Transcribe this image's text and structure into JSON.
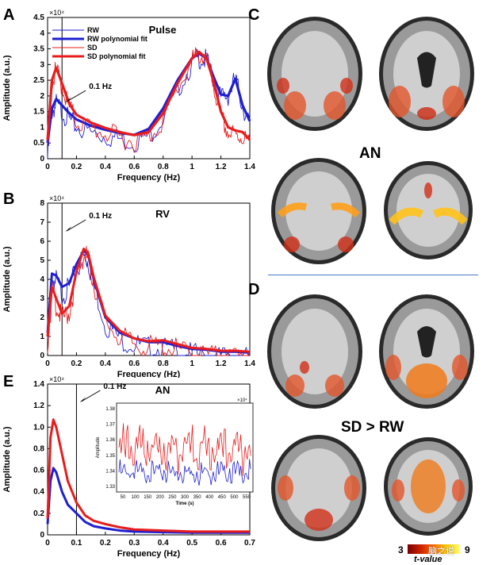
{
  "panels": {
    "A": "A",
    "B": "B",
    "C": "C",
    "D": "D",
    "E": "E"
  },
  "brain_captions": {
    "an": "AN",
    "contrast": "SD > RW"
  },
  "colorbar": {
    "min": "3",
    "max": "9",
    "label": "t-value",
    "colors": [
      "#7a0000",
      "#cc2200",
      "#ff6a00",
      "#ffcc00",
      "#ffff66"
    ]
  },
  "watermark": "脑之说",
  "series_colors": {
    "rw": "#1f1fd0",
    "sd": "#e81c1c"
  },
  "chart_data": [
    {
      "id": "A",
      "type": "line",
      "title": "Pulse",
      "xlabel": "Frequency (Hz)",
      "ylabel": "Amplitude (a.u.)",
      "exponent": "×10⁴",
      "xlim": [
        0,
        1.4
      ],
      "ylim": [
        0,
        4.5
      ],
      "xticks": [
        "0",
        "0.2",
        "0.4",
        "0.6",
        "0.8",
        "1",
        "1.2",
        "1.4"
      ],
      "yticks": [
        "0",
        "0.5",
        "1",
        "1.5",
        "2",
        "2.5",
        "3",
        "3.5",
        "4",
        "4.5"
      ],
      "vline_x": 0.1,
      "annotation": "0.1 Hz",
      "legend": [
        "RW",
        "RW polynomial fit",
        "SD",
        "SD polynomial fit"
      ],
      "legend_position": "top-left",
      "x": [
        0.0,
        0.03,
        0.06,
        0.1,
        0.15,
        0.2,
        0.3,
        0.4,
        0.5,
        0.6,
        0.7,
        0.8,
        0.9,
        1.0,
        1.05,
        1.1,
        1.15,
        1.2,
        1.25,
        1.3,
        1.35,
        1.4
      ],
      "series": [
        {
          "name": "RW",
          "values": [
            0.2,
            1.7,
            1.9,
            1.7,
            1.4,
            1.2,
            1.0,
            0.9,
            0.8,
            0.72,
            0.9,
            1.5,
            2.4,
            3.2,
            3.4,
            3.3,
            2.7,
            2.1,
            2.2,
            2.7,
            1.9,
            1.2
          ]
        },
        {
          "name": "RW polynomial fit",
          "values": [
            0.5,
            1.6,
            1.9,
            1.7,
            1.45,
            1.25,
            1.05,
            0.92,
            0.82,
            0.76,
            0.95,
            1.6,
            2.5,
            3.2,
            3.35,
            3.2,
            2.6,
            2.05,
            2.0,
            2.55,
            1.7,
            1.2
          ]
        },
        {
          "name": "SD",
          "values": [
            0.3,
            2.6,
            3.0,
            2.5,
            1.8,
            1.4,
            1.15,
            1.0,
            0.85,
            0.73,
            0.85,
            1.4,
            2.4,
            3.3,
            3.5,
            3.3,
            2.5,
            1.5,
            1.0,
            0.9,
            0.9,
            0.6
          ]
        },
        {
          "name": "SD polynomial fit",
          "values": [
            0.6,
            2.5,
            2.9,
            2.4,
            1.75,
            1.4,
            1.15,
            0.98,
            0.85,
            0.75,
            0.85,
            1.45,
            2.4,
            3.2,
            3.4,
            3.2,
            2.45,
            1.5,
            1.0,
            0.9,
            0.85,
            0.6
          ]
        }
      ]
    },
    {
      "id": "B",
      "type": "line",
      "title": "RV",
      "xlabel": "Frequency (Hz)",
      "ylabel": "Amplitude (a.u.)",
      "exponent": "×10⁴",
      "xlim": [
        0,
        1.4
      ],
      "ylim": [
        0,
        8
      ],
      "xticks": [
        "0",
        "0.2",
        "0.4",
        "0.6",
        "0.8",
        "1",
        "1.2",
        "1.4"
      ],
      "yticks": [
        "0",
        "1",
        "2",
        "3",
        "4",
        "5",
        "6",
        "7",
        "8"
      ],
      "vline_x": 0.1,
      "annotation": "0.1 Hz",
      "x": [
        0.0,
        0.03,
        0.06,
        0.1,
        0.15,
        0.2,
        0.25,
        0.28,
        0.32,
        0.4,
        0.5,
        0.6,
        0.7,
        0.8,
        0.9,
        1.0,
        1.1,
        1.2,
        1.3,
        1.4
      ],
      "series": [
        {
          "name": "RW",
          "values": [
            1.2,
            4.3,
            4.2,
            3.6,
            3.8,
            4.8,
            5.5,
            5.3,
            4.0,
            2.0,
            1.2,
            0.9,
            0.7,
            0.7,
            0.5,
            0.35,
            0.3,
            0.2,
            0.2,
            0.15
          ]
        },
        {
          "name": "SD",
          "values": [
            1.0,
            3.6,
            3.0,
            2.2,
            2.6,
            4.4,
            5.6,
            5.4,
            4.1,
            2.1,
            1.3,
            0.9,
            0.75,
            0.8,
            0.6,
            0.4,
            0.35,
            0.25,
            0.25,
            0.2
          ]
        }
      ]
    },
    {
      "id": "E",
      "type": "line",
      "title": "AN",
      "xlabel": "Frequency (Hz)",
      "ylabel": "Amplitude (a.u.)",
      "exponent": "×10⁴",
      "xlim": [
        0,
        0.7
      ],
      "ylim": [
        0,
        1.4
      ],
      "xticks": [
        "0",
        "0.1",
        "0.2",
        "0.3",
        "0.4",
        "0.5",
        "0.6",
        "0.7"
      ],
      "yticks": [
        "0",
        "0.2",
        "0.4",
        "0.6",
        "0.8",
        "1.0",
        "1.2",
        "1.4"
      ],
      "vline_x": 0.1,
      "annotation": "0.1 Hz",
      "x": [
        0.0,
        0.01,
        0.02,
        0.03,
        0.05,
        0.07,
        0.1,
        0.13,
        0.16,
        0.2,
        0.25,
        0.3,
        0.4,
        0.5,
        0.6,
        0.7
      ],
      "series": [
        {
          "name": "RW",
          "values": [
            0.1,
            0.5,
            0.62,
            0.58,
            0.4,
            0.28,
            0.2,
            0.12,
            0.08,
            0.06,
            0.04,
            0.03,
            0.025,
            0.02,
            0.02,
            0.02
          ]
        },
        {
          "name": "SD",
          "values": [
            0.15,
            0.9,
            1.07,
            1.0,
            0.75,
            0.5,
            0.3,
            0.18,
            0.13,
            0.1,
            0.07,
            0.05,
            0.04,
            0.03,
            0.03,
            0.03
          ]
        }
      ],
      "inset": {
        "ylabel": "Amplitude",
        "xlabel": "Time (s)",
        "exponent": "×10⁴",
        "xticks": [
          "50",
          "100",
          "150",
          "200",
          "250",
          "300",
          "350",
          "400",
          "450",
          "500",
          "550"
        ],
        "yticks": [
          "1.33",
          "1.34",
          "1.35",
          "1.36",
          "1.37",
          "1.38"
        ],
        "ylim": [
          1.33,
          1.385
        ],
        "series": [
          {
            "name": "RW",
            "level": 1.343
          },
          {
            "name": "SD",
            "level": 1.362
          }
        ]
      }
    }
  ]
}
